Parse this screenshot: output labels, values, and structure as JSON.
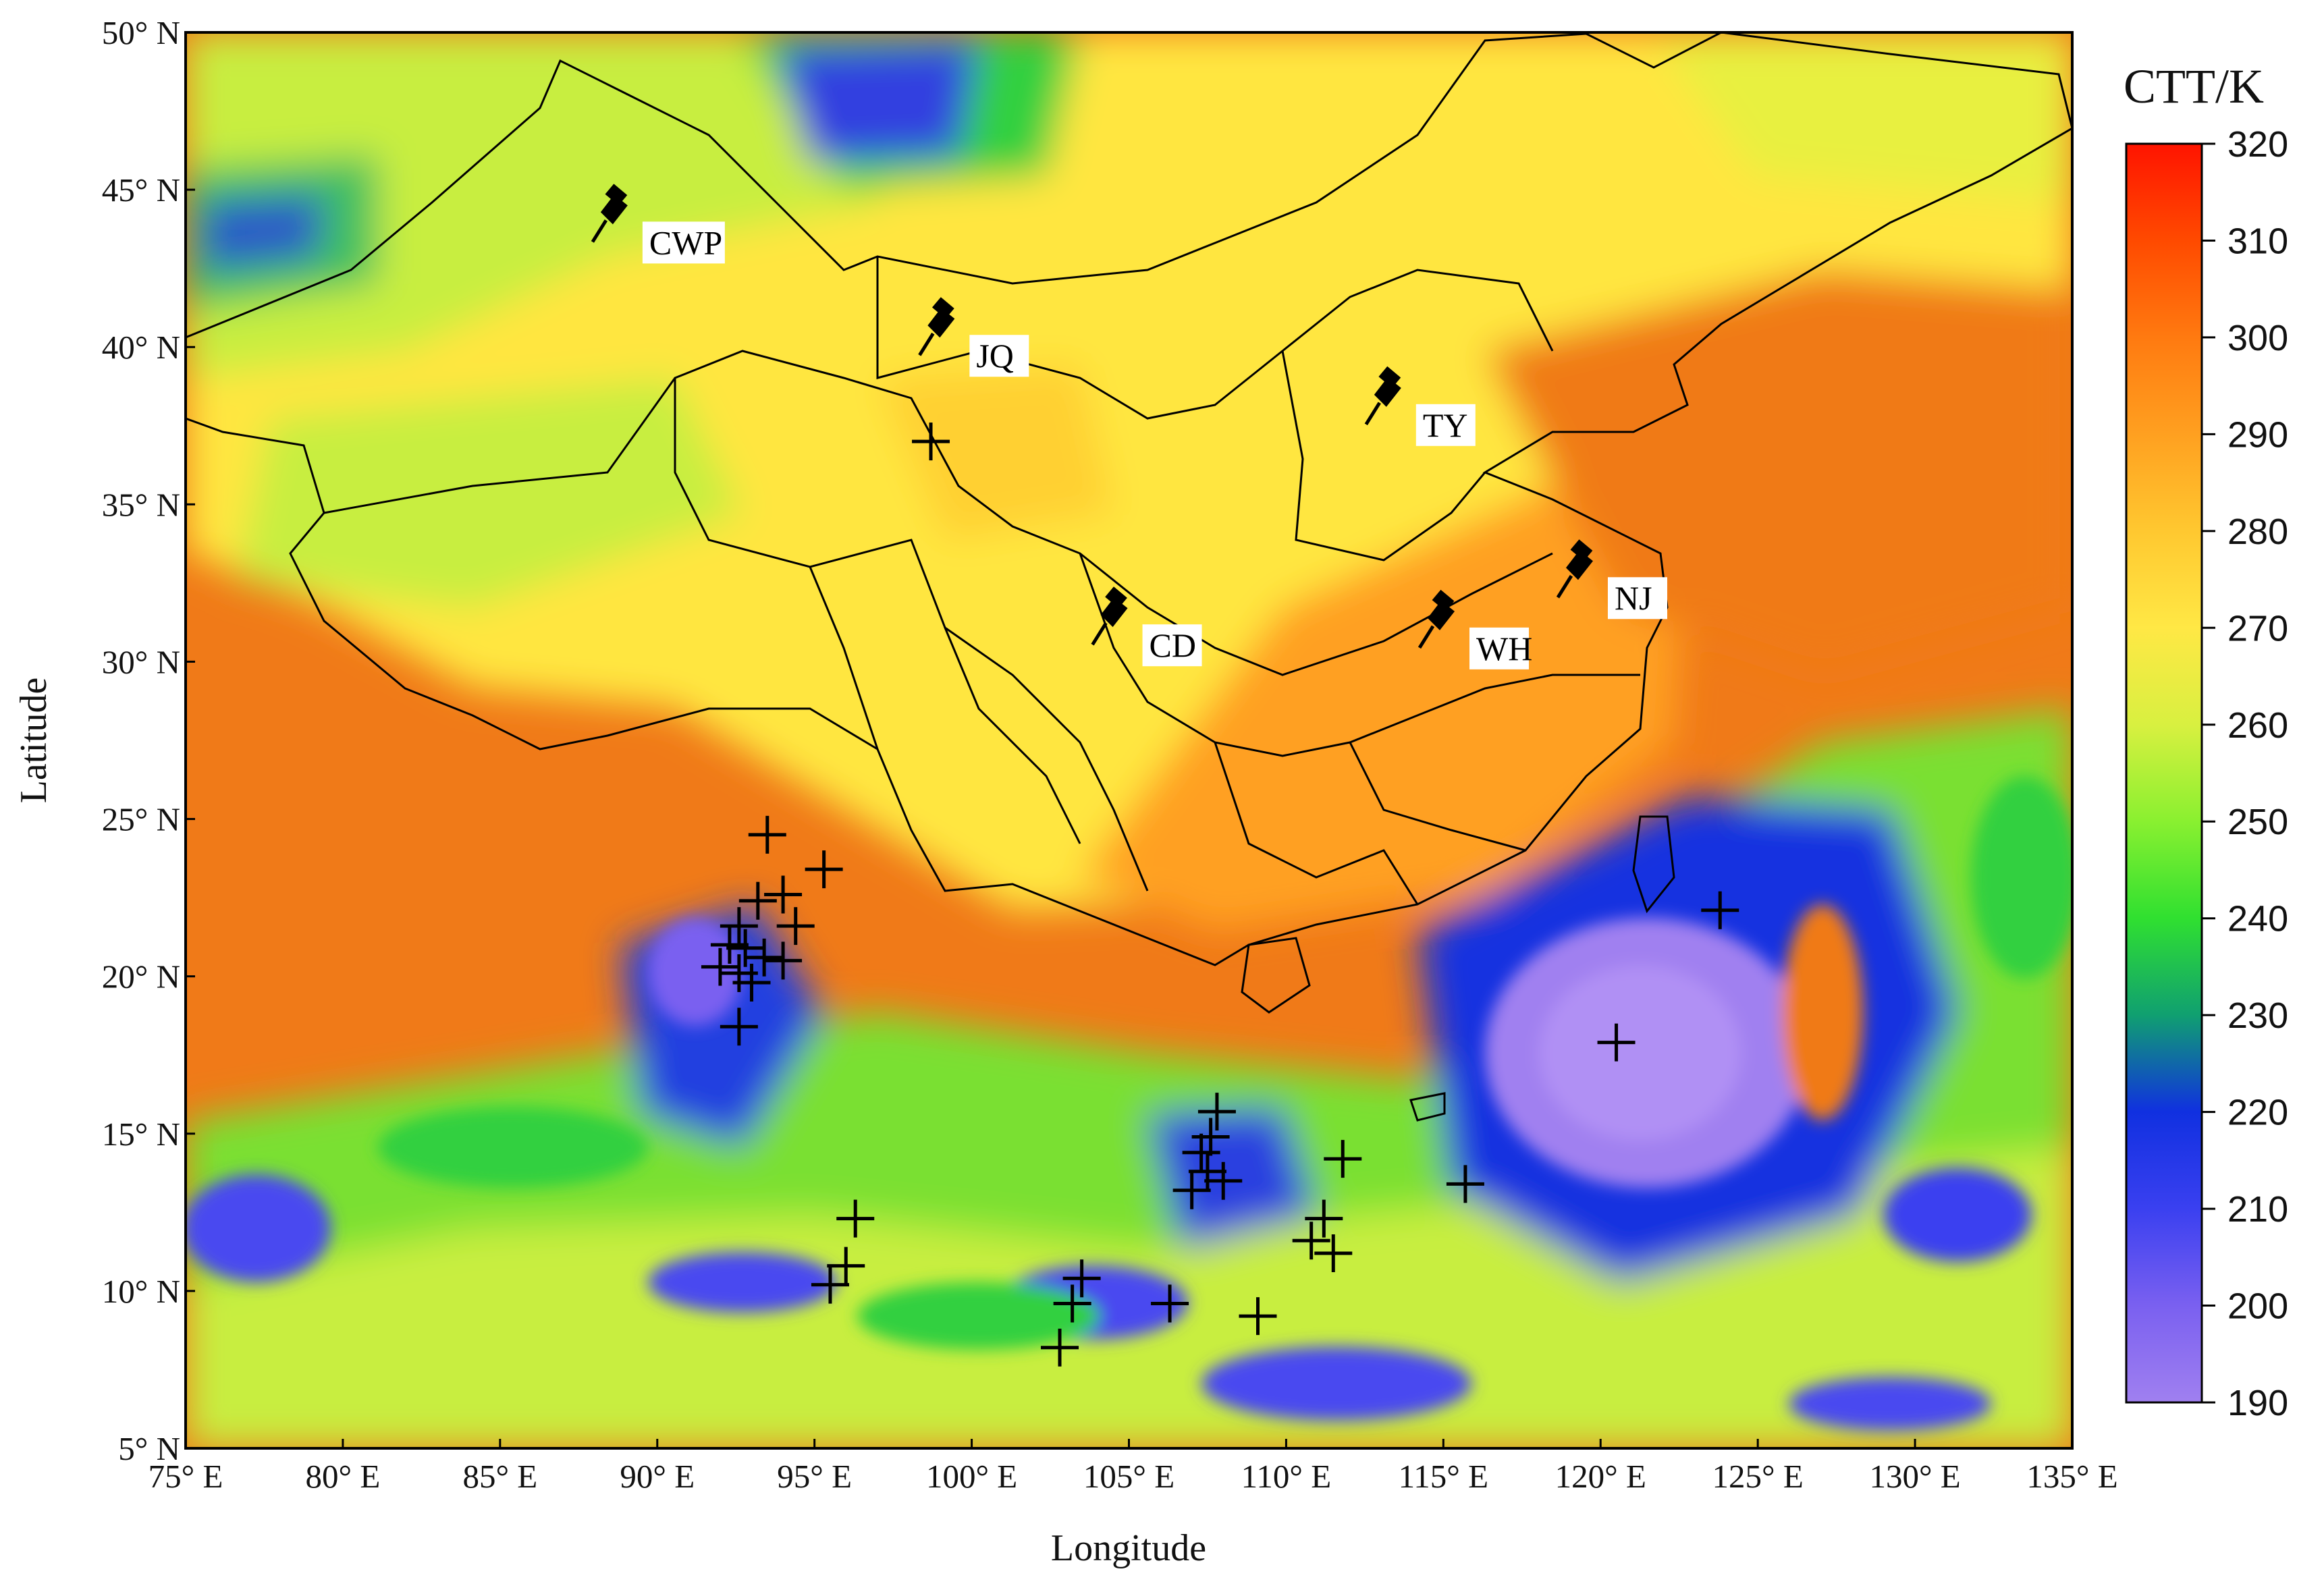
{
  "map": {
    "x_axis": {
      "label": "Longitude",
      "ticks": [
        "75° E",
        "80° E",
        "85° E",
        "90° E",
        "95° E",
        "100° E",
        "105° E",
        "110° E",
        "115° E",
        "120° E",
        "125° E",
        "130° E",
        "135° E"
      ]
    },
    "y_axis": {
      "label": "Latitude",
      "ticks": [
        "50° N",
        "45° N",
        "40° N",
        "35° N",
        "30° N",
        "25° N",
        "20° N",
        "15° N",
        "10° N",
        "5° N"
      ]
    },
    "extent": {
      "lon": [
        75,
        135
      ],
      "lat": [
        5,
        50
      ]
    },
    "colorbar": {
      "title": "CTT/K",
      "ticks": [
        "320",
        "310",
        "300",
        "290",
        "280",
        "270",
        "260",
        "250",
        "240",
        "230",
        "220",
        "210",
        "200",
        "190"
      ],
      "range": [
        190,
        320
      ],
      "colors": [
        "#ff1a00",
        "#ff4a00",
        "#ff7a10",
        "#ffa020",
        "#ffc830",
        "#ffe845",
        "#d8f040",
        "#8af030",
        "#30e030",
        "#10a070",
        "#1030e0",
        "#3a40f0",
        "#7a60f0",
        "#a080f0"
      ]
    },
    "sites": [
      {
        "label": "CWP",
        "lon": 88.5,
        "lat": 44.2
      },
      {
        "label": "JQ",
        "lon": 98.9,
        "lat": 40.6
      },
      {
        "label": "TY",
        "lon": 113.1,
        "lat": 38.4
      },
      {
        "label": "NJ",
        "lon": 119.2,
        "lat": 32.9
      },
      {
        "label": "CD",
        "lon": 104.4,
        "lat": 31.4
      },
      {
        "label": "WH",
        "lon": 114.8,
        "lat": 31.3
      }
    ],
    "cross_markers": [
      {
        "lon": 93.5,
        "lat": 24.5
      },
      {
        "lon": 95.3,
        "lat": 23.4
      },
      {
        "lon": 93.2,
        "lat": 22.4
      },
      {
        "lon": 94.0,
        "lat": 22.6
      },
      {
        "lon": 92.6,
        "lat": 21.6
      },
      {
        "lon": 92.3,
        "lat": 21.0
      },
      {
        "lon": 92.8,
        "lat": 20.9
      },
      {
        "lon": 92.0,
        "lat": 20.3
      },
      {
        "lon": 92.6,
        "lat": 20.1
      },
      {
        "lon": 93.4,
        "lat": 20.6
      },
      {
        "lon": 94.0,
        "lat": 20.5
      },
      {
        "lon": 94.4,
        "lat": 21.6
      },
      {
        "lon": 93.0,
        "lat": 19.8
      },
      {
        "lon": 92.6,
        "lat": 18.4
      },
      {
        "lon": 98.7,
        "lat": 37.0
      },
      {
        "lon": 123.8,
        "lat": 22.1
      },
      {
        "lon": 120.5,
        "lat": 17.9
      },
      {
        "lon": 107.3,
        "lat": 14.4
      },
      {
        "lon": 107.8,
        "lat": 15.7
      },
      {
        "lon": 107.5,
        "lat": 13.8
      },
      {
        "lon": 107.0,
        "lat": 13.2
      },
      {
        "lon": 108.0,
        "lat": 13.5
      },
      {
        "lon": 107.6,
        "lat": 14.9
      },
      {
        "lon": 111.8,
        "lat": 14.2
      },
      {
        "lon": 115.7,
        "lat": 13.4
      },
      {
        "lon": 111.2,
        "lat": 12.3
      },
      {
        "lon": 110.8,
        "lat": 11.6
      },
      {
        "lon": 111.5,
        "lat": 11.2
      },
      {
        "lon": 96.3,
        "lat": 12.3
      },
      {
        "lon": 96.0,
        "lat": 10.8
      },
      {
        "lon": 95.5,
        "lat": 10.2
      },
      {
        "lon": 103.5,
        "lat": 10.4
      },
      {
        "lon": 103.2,
        "lat": 9.6
      },
      {
        "lon": 102.8,
        "lat": 8.2
      },
      {
        "lon": 106.3,
        "lat": 9.6
      },
      {
        "lon": 109.1,
        "lat": 9.2
      }
    ]
  }
}
